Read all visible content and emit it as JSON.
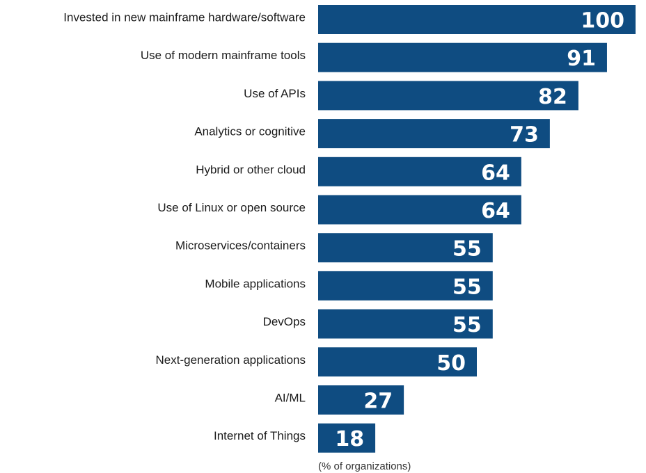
{
  "chart_data": {
    "type": "bar",
    "orientation": "horizontal",
    "categories": [
      "Invested in new mainframe hardware/software",
      "Use of modern mainframe tools",
      "Use of APIs",
      "Analytics or cognitive",
      "Hybrid or other cloud",
      "Use of Linux or open source",
      "Microservices/containers",
      "Mobile applications",
      "DevOps",
      "Next-generation applications",
      "AI/ML",
      "Internet of Things"
    ],
    "values": [
      100,
      91,
      82,
      73,
      64,
      64,
      55,
      55,
      55,
      50,
      27,
      18
    ],
    "xlabel": "(% of organizations)",
    "xlim": [
      0,
      100
    ],
    "grid": false,
    "legend": "none",
    "bar_color": "#0f4c81",
    "value_label_color": "#ffffff"
  }
}
